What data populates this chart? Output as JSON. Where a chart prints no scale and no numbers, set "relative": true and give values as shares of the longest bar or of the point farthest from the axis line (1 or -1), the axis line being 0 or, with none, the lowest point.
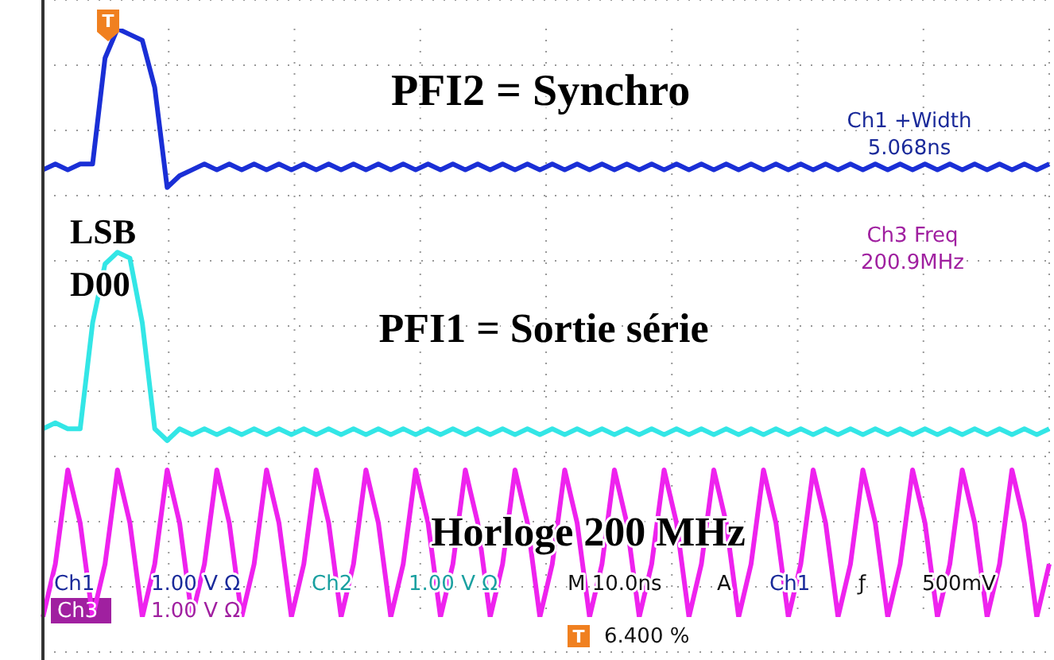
{
  "chart_data": {
    "type": "line",
    "relative": true,
    "grid": true,
    "marker": "none",
    "line_style": "solid",
    "categories": [
      null,
      null,
      null,
      null,
      null,
      null,
      null,
      null,
      null,
      null,
      null,
      null,
      null,
      null,
      null,
      null,
      null,
      null,
      null,
      null,
      null,
      null,
      null,
      null,
      null,
      null,
      null,
      null,
      null,
      null,
      null,
      null,
      null,
      null,
      null,
      null,
      null,
      null,
      null,
      null,
      null,
      null,
      null,
      null,
      null,
      null,
      null,
      null,
      null,
      null,
      null,
      null,
      null,
      null,
      null,
      null,
      null,
      null,
      null,
      null,
      null,
      null,
      null,
      null,
      null,
      null,
      null,
      null,
      null,
      null,
      null,
      null,
      null,
      null,
      null,
      null,
      null,
      null,
      null,
      null,
      null,
      null
    ],
    "series": [
      {
        "color": "#1a2fd6",
        "values": [
          0.76,
          0.77,
          0.76,
          0.77,
          0.77,
          0.95,
          1,
          0.99,
          0.98,
          0.9,
          0.73,
          0.75,
          0.76,
          0.77,
          0.76,
          0.77,
          0.76,
          0.77,
          0.76,
          0.77,
          0.76,
          0.77,
          0.76,
          0.77,
          0.76,
          0.77,
          0.76,
          0.77,
          0.76,
          0.77,
          0.76,
          0.77,
          0.76,
          0.77,
          0.76,
          0.77,
          0.76,
          0.77,
          0.76,
          0.77,
          0.76,
          0.77,
          0.76,
          0.77,
          0.76,
          0.77,
          0.76,
          0.77,
          0.76,
          0.77,
          0.76,
          0.77,
          0.76,
          0.77,
          0.76,
          0.77,
          0.76,
          0.77,
          0.76,
          0.77,
          0.76,
          0.77,
          0.76,
          0.77,
          0.76,
          0.77,
          0.76,
          0.77,
          0.76,
          0.77,
          0.76,
          0.77,
          0.76,
          0.77,
          0.76,
          0.77,
          0.76,
          0.77,
          0.76,
          0.77,
          0.76,
          0.77
        ]
      },
      {
        "color": "#33e6e6",
        "values": [
          0.32,
          0.33,
          0.32,
          0.32,
          0.5,
          0.6,
          0.62,
          0.61,
          0.5,
          0.32,
          0.3,
          0.32,
          0.31,
          0.32,
          0.31,
          0.32,
          0.31,
          0.32,
          0.31,
          0.32,
          0.31,
          0.32,
          0.31,
          0.32,
          0.31,
          0.32,
          0.31,
          0.32,
          0.31,
          0.32,
          0.31,
          0.32,
          0.31,
          0.32,
          0.31,
          0.32,
          0.31,
          0.32,
          0.31,
          0.32,
          0.31,
          0.32,
          0.31,
          0.32,
          0.31,
          0.32,
          0.31,
          0.32,
          0.31,
          0.32,
          0.31,
          0.32,
          0.31,
          0.32,
          0.31,
          0.32,
          0.31,
          0.32,
          0.31,
          0.32,
          0.31,
          0.32,
          0.31,
          0.32,
          0.31,
          0.32,
          0.31,
          0.32,
          0.31,
          0.32,
          0.31,
          0.32,
          0.31,
          0.32,
          0.31,
          0.32,
          0.31,
          0.32,
          0.31,
          0.32,
          0.31,
          0.32
        ]
      },
      {
        "color": "#ee22ee",
        "values": [
          0,
          0.09,
          0.25,
          0.16,
          0,
          0.09,
          0.25,
          0.16,
          0,
          0.09,
          0.25,
          0.16,
          0,
          0.09,
          0.25,
          0.16,
          0,
          0.09,
          0.25,
          0.16,
          0,
          0.09,
          0.25,
          0.16,
          0,
          0.09,
          0.25,
          0.16,
          0,
          0.09,
          0.25,
          0.16,
          0,
          0.09,
          0.25,
          0.16,
          0,
          0.09,
          0.25,
          0.16,
          0,
          0.09,
          0.25,
          0.16,
          0,
          0.09,
          0.25,
          0.16,
          0,
          0.09,
          0.25,
          0.16,
          0,
          0.09,
          0.25,
          0.16,
          0,
          0.09,
          0.25,
          0.16,
          0,
          0.09,
          0.25,
          0.16,
          0,
          0.09,
          0.25,
          0.16,
          0,
          0.09,
          0.25,
          0.16,
          0,
          0.09,
          0.25,
          0.16,
          0,
          0.09,
          0.25,
          0.16,
          0,
          0.09
        ]
      }
    ],
    "annotations": [
      "PFI2 = Synchro",
      "Ch1 +Width",
      "5.068ns",
      "Ch3 Freq",
      "200.9MHz",
      "LSB",
      "D00",
      "PFI1 = Sortie série",
      "Horloge 200 MHz",
      "Ch1",
      "1.00 V Ω",
      "Ch2",
      "1.00 V Ω",
      "M 10.0ns",
      "A",
      "Ch1",
      "ƒ",
      "500mV",
      "Ch3",
      "1.00 V Ω",
      "T",
      "6.400 %",
      "T"
    ]
  }
}
